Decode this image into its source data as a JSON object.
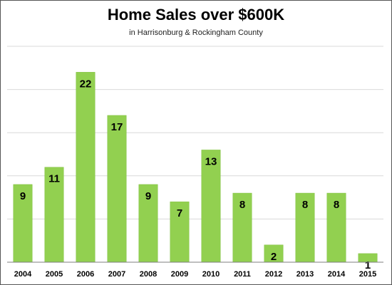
{
  "chart_data": {
    "type": "bar",
    "title": "Home Sales over $600K",
    "subtitle": "in Harrisonburg & Rockingham County",
    "categories": [
      "2004",
      "2005",
      "2006",
      "2007",
      "2008",
      "2009",
      "2010",
      "2011",
      "2012",
      "2013",
      "2014",
      "2015"
    ],
    "values": [
      9,
      11,
      22,
      17,
      9,
      7,
      13,
      8,
      2,
      8,
      8,
      1
    ],
    "xlabel": "",
    "ylabel": "",
    "ylim": [
      0,
      25
    ],
    "grid": true,
    "data_labels": true,
    "legend": "none",
    "bar_color": "#92d050",
    "bar_edge_color": "#7fbf3e",
    "grid_color": "#d9d9d9"
  }
}
